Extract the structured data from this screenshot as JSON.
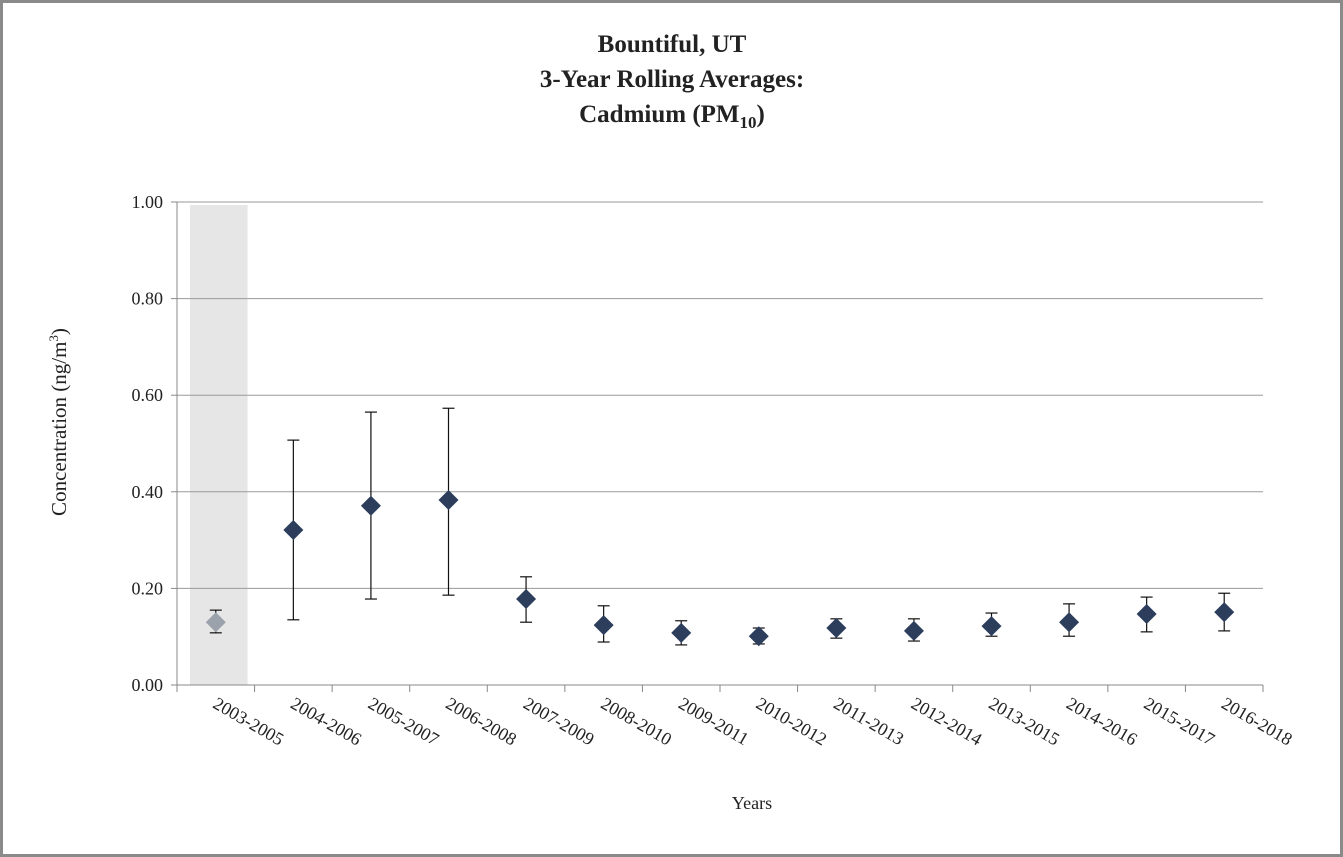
{
  "chart_data": {
    "type": "errorbar",
    "title_lines": [
      "Bountiful, UT",
      "3-Year Rolling Averages:"
    ],
    "title_last": {
      "text": "Cadmium (PM",
      "sub": "10",
      "end": ")"
    },
    "ylabel": {
      "text": "Concentration (ng/m",
      "sup": "3",
      "end": ")"
    },
    "xlabel": "Years",
    "categories": [
      "2003-2005",
      "2004-2006",
      "2005-2007",
      "2006-2008",
      "2007-2009",
      "2008-2010",
      "2009-2011",
      "2010-2012",
      "2011-2013",
      "2012-2014",
      "2013-2015",
      "2014-2016",
      "2015-2017",
      "2016-2018"
    ],
    "values": [
      0.13,
      0.321,
      0.371,
      0.383,
      0.178,
      0.124,
      0.108,
      0.101,
      0.118,
      0.112,
      0.122,
      0.13,
      0.147,
      0.151
    ],
    "lower": [
      0.108,
      0.135,
      0.178,
      0.186,
      0.13,
      0.089,
      0.083,
      0.085,
      0.097,
      0.091,
      0.101,
      0.101,
      0.11,
      0.112
    ],
    "upper": [
      0.155,
      0.507,
      0.565,
      0.573,
      0.224,
      0.164,
      0.133,
      0.118,
      0.137,
      0.137,
      0.149,
      0.168,
      0.182,
      0.19
    ],
    "colors": [
      "#9ba2ab",
      "#2c3e5c",
      "#2c3e5c",
      "#2c3e5c",
      "#2c3e5c",
      "#2c3e5c",
      "#2c3e5c",
      "#2c3e5c",
      "#2c3e5c",
      "#2c3e5c",
      "#2c3e5c",
      "#2c3e5c",
      "#2c3e5c",
      "#2c3e5c"
    ],
    "shaded_index": 0,
    "shade_color": "#e6e6e6",
    "ylim": [
      0,
      1
    ],
    "yticks": [
      {
        "value": 0,
        "label": "0.00"
      },
      {
        "value": 0.2,
        "label": "0.20"
      },
      {
        "value": 0.4,
        "label": "0.40"
      },
      {
        "value": 0.6,
        "label": "0.60"
      },
      {
        "value": 0.8,
        "label": "0.80"
      },
      {
        "value": 1,
        "label": "1.00"
      }
    ],
    "grid": true
  }
}
